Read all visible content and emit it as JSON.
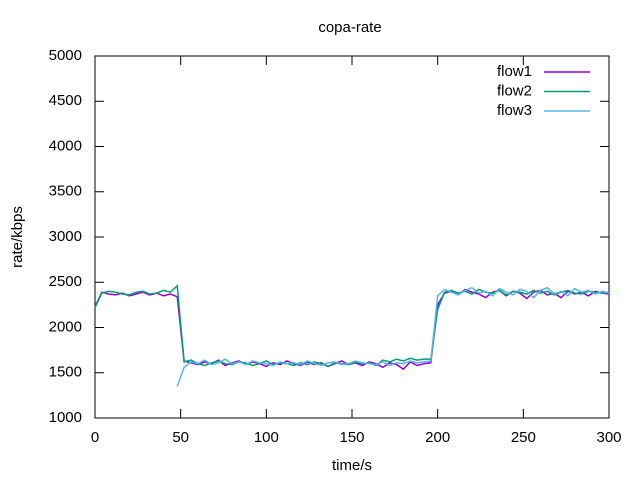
{
  "chart_data": {
    "type": "line",
    "title": "copa-rate",
    "x_label": "time/s",
    "y_label": "rate/kbps",
    "x": [
      0,
      4,
      8,
      12,
      16,
      20,
      24,
      28,
      32,
      36,
      40,
      44,
      48,
      52,
      56,
      60,
      64,
      68,
      72,
      76,
      80,
      84,
      88,
      92,
      96,
      100,
      104,
      108,
      112,
      116,
      120,
      124,
      128,
      132,
      136,
      140,
      144,
      148,
      152,
      156,
      160,
      164,
      168,
      172,
      176,
      180,
      184,
      188,
      192,
      196,
      200,
      204,
      208,
      212,
      216,
      220,
      224,
      228,
      232,
      236,
      240,
      244,
      248,
      252,
      256,
      260,
      264,
      268,
      272,
      276,
      280,
      284,
      288,
      292,
      296,
      300
    ],
    "series": [
      {
        "name": "flow1",
        "color": "#9400d3",
        "values": [
          2230,
          2390,
          2370,
          2360,
          2380,
          2350,
          2370,
          2390,
          2360,
          2380,
          2350,
          2370,
          2340,
          1630,
          1610,
          1590,
          1620,
          1600,
          1640,
          1580,
          1610,
          1630,
          1590,
          1620,
          1600,
          1570,
          1610,
          1590,
          1630,
          1600,
          1580,
          1620,
          1590,
          1610,
          1570,
          1600,
          1630,
          1590,
          1610,
          1580,
          1620,
          1600,
          1560,
          1610,
          1590,
          1540,
          1620,
          1580,
          1600,
          1610,
          2250,
          2380,
          2400,
          2360,
          2420,
          2390,
          2370,
          2330,
          2390,
          2410,
          2350,
          2400,
          2380,
          2320,
          2390,
          2410,
          2360,
          2380,
          2330,
          2400,
          2370,
          2390,
          2350,
          2400,
          2380,
          2370
        ]
      },
      {
        "name": "flow2",
        "color": "#009e73",
        "values": [
          2220,
          2380,
          2400,
          2390,
          2370,
          2360,
          2390,
          2400,
          2370,
          2380,
          2410,
          2390,
          2460,
          1620,
          1640,
          1600,
          1580,
          1610,
          1630,
          1600,
          1590,
          1620,
          1610,
          1580,
          1600,
          1630,
          1590,
          1610,
          1600,
          1580,
          1610,
          1590,
          1620,
          1600,
          1570,
          1610,
          1600,
          1590,
          1620,
          1600,
          1610,
          1580,
          1640,
          1620,
          1650,
          1630,
          1660,
          1640,
          1650,
          1650,
          2200,
          2390,
          2410,
          2380,
          2400,
          2370,
          2420,
          2390,
          2380,
          2410,
          2360,
          2400,
          2390,
          2370,
          2410,
          2380,
          2400,
          2360,
          2390,
          2410,
          2380,
          2370,
          2400,
          2390,
          2380,
          2390
        ]
      },
      {
        "name": "flow3",
        "color": "#56b4e9",
        "values": [
          null,
          null,
          null,
          null,
          null,
          null,
          null,
          null,
          null,
          null,
          null,
          null,
          1350,
          1560,
          1620,
          1600,
          1640,
          1590,
          1610,
          1650,
          1600,
          1620,
          1590,
          1630,
          1610,
          1600,
          1580,
          1620,
          1600,
          1610,
          1590,
          1630,
          1600,
          1580,
          1610,
          1620,
          1590,
          1600,
          1630,
          1610,
          1600,
          1590,
          1620,
          1580,
          1610,
          1600,
          1630,
          1610,
          1620,
          1630,
          2350,
          2420,
          2390,
          2360,
          2410,
          2440,
          2380,
          2400,
          2350,
          2430,
          2390,
          2360,
          2420,
          2400,
          2330,
          2410,
          2440,
          2370,
          2400,
          2350,
          2430,
          2390,
          2410,
          2370,
          2400,
          2380
        ]
      }
    ],
    "xlim": [
      0,
      300
    ],
    "ylim": [
      1000,
      5000
    ],
    "xticks": [
      0,
      50,
      100,
      150,
      200,
      250,
      300
    ],
    "yticks": [
      1000,
      1500,
      2000,
      2500,
      3000,
      3500,
      4000,
      4500,
      5000
    ],
    "legend": "top-right"
  }
}
